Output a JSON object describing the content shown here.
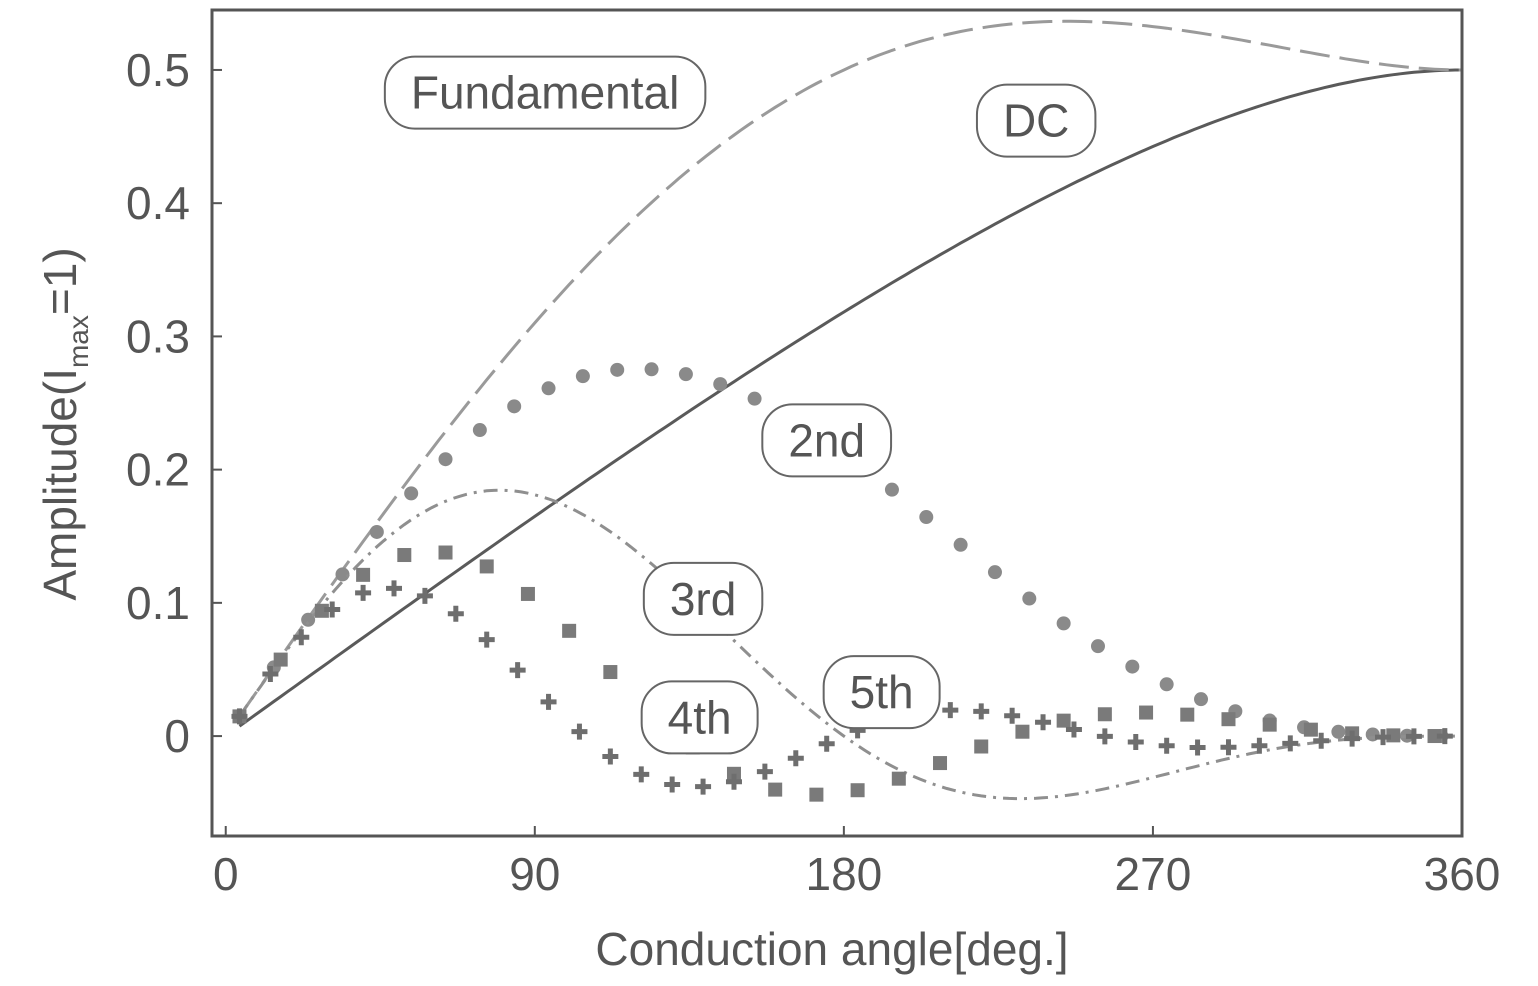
{
  "chart_data": {
    "type": "line",
    "title": "",
    "xlabel": "Conduction angle[deg.]",
    "ylabel_main": "Amplitude(I",
    "ylabel_sub": "max",
    "ylabel_tail": "=1)",
    "xlim": [
      -4,
      360
    ],
    "ylim": [
      -0.075,
      0.545
    ],
    "x_ticks": [
      0,
      90,
      180,
      270,
      360
    ],
    "x_tick_labels": [
      "0",
      "90",
      "180",
      "270",
      "360"
    ],
    "y_ticks": [
      0,
      0.1,
      0.2,
      0.3,
      0.4,
      0.5
    ],
    "y_tick_labels": [
      "0",
      "0.1",
      "0.2",
      "0.3",
      "0.4",
      "0.5"
    ],
    "grid": false,
    "series": [
      {
        "name": "DC",
        "style": "solid",
        "color": "#5a5a5a",
        "harmonic": 0
      },
      {
        "name": "Fundamental",
        "style": "dashed",
        "color": "#9a9a9a",
        "harmonic": 1
      },
      {
        "name": "2nd",
        "style": "circle",
        "color": "#8a8a8a",
        "harmonic": 2
      },
      {
        "name": "3rd",
        "style": "dashdot",
        "color": "#8f8f8f",
        "harmonic": 3
      },
      {
        "name": "4th",
        "style": "square",
        "color": "#7a7a7a",
        "harmonic": 4
      },
      {
        "name": "5th",
        "style": "plus",
        "color": "#6e6e6e",
        "harmonic": 5
      }
    ],
    "series_labels": [
      {
        "series": "Fundamental",
        "text": "Fundamental",
        "x": 93,
        "y": 0.483
      },
      {
        "series": "DC",
        "text": "DC",
        "x": 236,
        "y": 0.462
      },
      {
        "series": "2nd",
        "text": "2nd",
        "x": 175,
        "y": 0.222
      },
      {
        "series": "3rd",
        "text": "3rd",
        "x": 139,
        "y": 0.103
      },
      {
        "series": "4th",
        "text": "4th",
        "x": 138,
        "y": 0.014
      },
      {
        "series": "5th",
        "text": "5th",
        "x": 191,
        "y": 0.033
      }
    ]
  }
}
